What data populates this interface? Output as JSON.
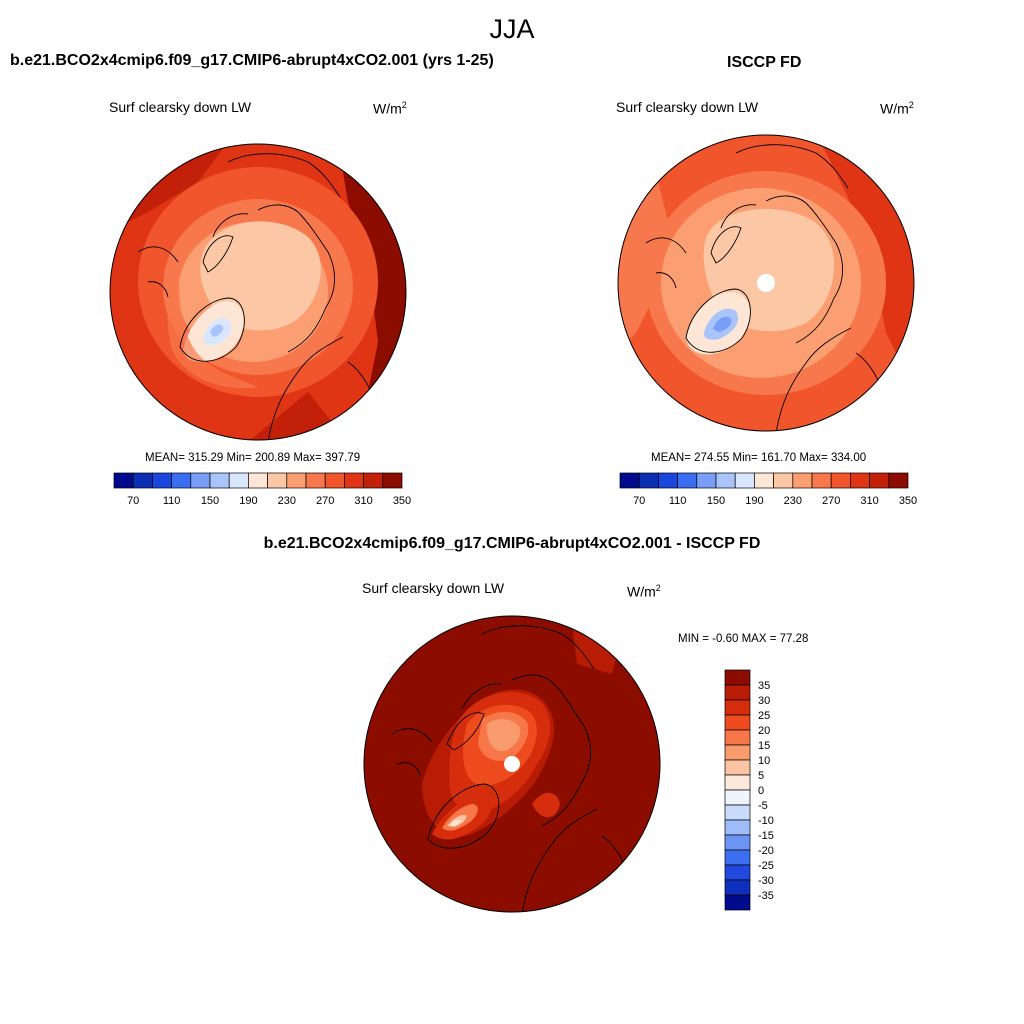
{
  "figure": {
    "season": "JJA",
    "model_title": "b.e21.BCO2x4cmip6.f09_g17.CMIP6-abrupt4xCO2.001 (yrs 1-25)",
    "obs_title": "ISCCP FD",
    "diff_title": "b.e21.BCO2x4cmip6.f09_g17.CMIP6-abrupt4xCO2.001 - ISCCP FD"
  },
  "panels": {
    "model": {
      "variable": "Surf clearsky down LW",
      "units_base": "W/m",
      "units_exp": "2",
      "stats": "MEAN= 315.29  Min= 200.89  Max= 397.79"
    },
    "obs": {
      "variable": "Surf clearsky down LW",
      "units_base": "W/m",
      "units_exp": "2",
      "stats": "MEAN= 274.55  Min= 161.70  Max= 334.00"
    },
    "diff": {
      "variable": "Surf clearsky down LW",
      "units_base": "W/m",
      "units_exp": "2",
      "stats": "MIN =  -0.60 MAX =  77.28"
    }
  },
  "colorbars": {
    "absolute": {
      "colors": [
        "#000a8c",
        "#0b2fb3",
        "#1b46dd",
        "#3a6ef2",
        "#7a9ef7",
        "#a9c4fa",
        "#d8e7fd",
        "#fde6d5",
        "#fcc7a4",
        "#fb9f73",
        "#f7784c",
        "#f0552b",
        "#df3514",
        "#c22008",
        "#8d0c00"
      ],
      "labels": [
        "70",
        "110",
        "150",
        "190",
        "230",
        "270",
        "310",
        "350"
      ]
    },
    "difference": {
      "colors": [
        "#8d0c00",
        "#b81c05",
        "#d62e0c",
        "#ee4b1e",
        "#f77749",
        "#fa9b6e",
        "#fcc4a2",
        "#fde9dc",
        "#eff4fd",
        "#c9dcfb",
        "#9dbcf8",
        "#6a95f4",
        "#3d6ef0",
        "#2149e0",
        "#0f2fbd",
        "#000a8c"
      ],
      "labels": [
        "35",
        "30",
        "25",
        "20",
        "15",
        "10",
        "5",
        "0",
        "-5",
        "-10",
        "-15",
        "-20",
        "-25",
        "-30",
        "-35"
      ]
    }
  }
}
